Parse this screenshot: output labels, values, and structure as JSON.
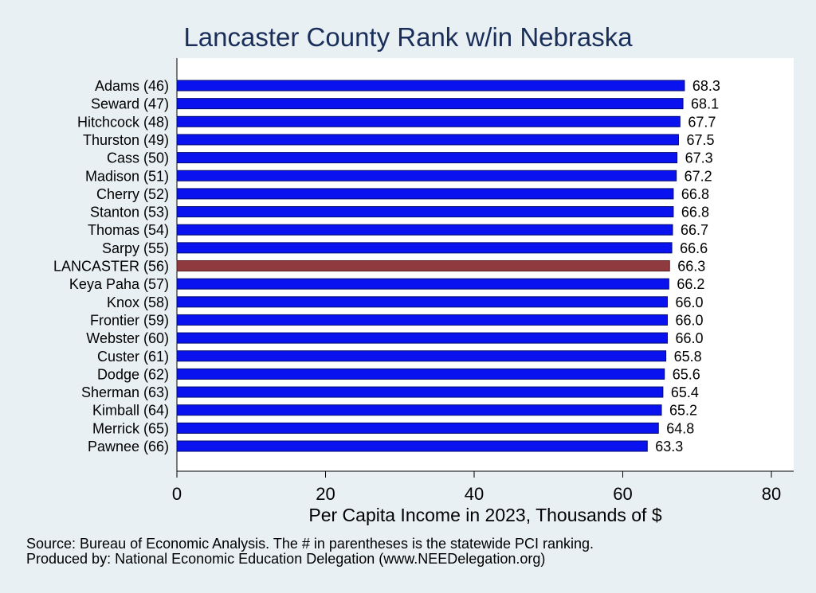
{
  "chart_data": {
    "type": "bar",
    "orientation": "horizontal",
    "title": "Lancaster County Rank w/in Nebraska",
    "xlabel": "Per Capita Income in 2023, Thousands of $",
    "xlim": [
      0,
      83
    ],
    "xticks": [
      "0",
      "20",
      "40",
      "60",
      "80"
    ],
    "categories": [
      "Adams (46)",
      "Seward (47)",
      "Hitchcock (48)",
      "Thurston (49)",
      "Cass (50)",
      "Madison (51)",
      "Cherry (52)",
      "Stanton (53)",
      "Thomas (54)",
      "Sarpy (55)",
      "LANCASTER (56)",
      "Keya Paha (57)",
      "Knox (58)",
      "Frontier (59)",
      "Webster (60)",
      "Custer (61)",
      "Dodge (62)",
      "Sherman (63)",
      "Kimball (64)",
      "Merrick (65)",
      "Pawnee (66)"
    ],
    "values": [
      68.3,
      68.1,
      67.7,
      67.5,
      67.3,
      67.2,
      66.8,
      66.8,
      66.7,
      66.6,
      66.3,
      66.2,
      66.0,
      66.0,
      66.0,
      65.8,
      65.6,
      65.4,
      65.2,
      64.8,
      63.3
    ],
    "value_labels": [
      "68.3",
      "68.1",
      "67.7",
      "67.5",
      "67.3",
      "67.2",
      "66.8",
      "66.8",
      "66.7",
      "66.6",
      "66.3",
      "66.2",
      "66.0",
      "66.0",
      "66.0",
      "65.8",
      "65.6",
      "65.4",
      "65.2",
      "64.8",
      "63.3"
    ],
    "highlight": "LANCASTER (56)",
    "grid": false,
    "colors": {
      "bar": "#0a12f0",
      "bar_outline": "#000a6e",
      "highlight": "#8e3a3e",
      "background": "#e9f0f3",
      "plot_background": "#ffffff",
      "title": "#1a2e5a"
    }
  },
  "notes": {
    "source": "Source: Bureau of Economic Analysis. The # in parentheses is the statewide PCI ranking.",
    "produced": "Produced by: National Economic Education Delegation (www.NEEDelegation.org)"
  }
}
